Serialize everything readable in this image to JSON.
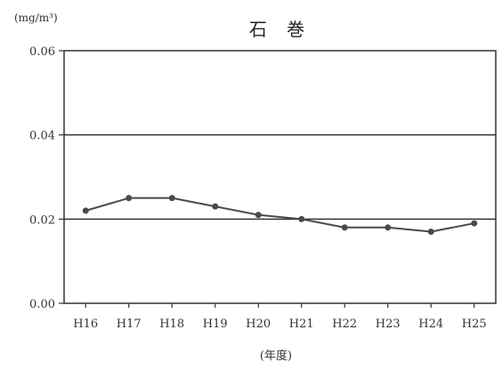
{
  "chart_data": {
    "type": "line",
    "title": "石 巻",
    "unit_label": "(mg/m³)",
    "xlabel": "(年度)",
    "ylabel": "",
    "categories": [
      "H16",
      "H17",
      "H18",
      "H19",
      "H20",
      "H21",
      "H22",
      "H23",
      "H24",
      "H25"
    ],
    "series": [
      {
        "values": [
          0.022,
          0.025,
          0.025,
          0.023,
          0.021,
          0.02,
          0.018,
          0.018,
          0.017,
          0.019
        ]
      }
    ],
    "ylim": [
      0.0,
      0.06
    ],
    "y_ticks": [
      "0.00",
      "0.02",
      "0.04",
      "0.06"
    ],
    "y_tick_values": [
      0.0,
      0.02,
      0.04,
      0.06
    ],
    "reference_lines": [
      0.02,
      0.04
    ],
    "grid": false,
    "legend": "none",
    "colors": {
      "line": "#4a4a4a",
      "marker": "#4a4a4a",
      "axis": "#333333",
      "reference": "#333333"
    }
  }
}
